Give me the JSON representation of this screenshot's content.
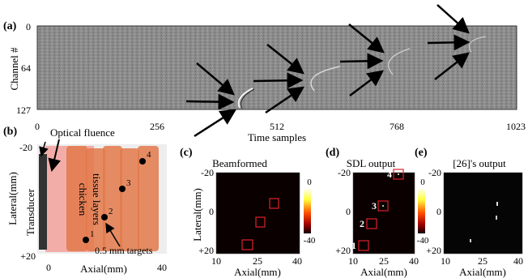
{
  "panels": {
    "a": {
      "label": "(a)",
      "ylabel": "Channel #",
      "xlabel": "Time samples",
      "yticks": [
        "0",
        "64",
        "127"
      ],
      "xticks": [
        "0",
        "256",
        "512",
        "768",
        "1023"
      ]
    },
    "b": {
      "label": "(b)",
      "optical_fluence": "Optical fluence",
      "transducer": "Transducer",
      "tissue_line1": "chicken",
      "tissue_line2": "tissue layers",
      "targets_label": "0.5 mm targets",
      "ylabel": "Lateral(mm)",
      "xlabel": "Axial(mm)",
      "ytick_top": "-20",
      "ytick_bottom": "+20",
      "xtick_left": "0",
      "xtick_right": "40",
      "target_numbers": [
        "1",
        "2",
        "3",
        "4"
      ]
    },
    "c": {
      "label": "(c)",
      "title": "Beamformed",
      "ylabel": "Lateral(mm)",
      "xlabel": "Axial(mm)",
      "yticks": [
        "-20",
        "0",
        "+20"
      ],
      "xticks": [
        "10",
        "25",
        "40"
      ],
      "colorbar_max": "0",
      "colorbar_min": "-40"
    },
    "d": {
      "label": "(d)",
      "title": "SDL output",
      "xlabel": "Axial(mm)",
      "yticks": [
        "-20",
        "0",
        "+20"
      ],
      "xticks": [
        "10",
        "25",
        "40"
      ],
      "colorbar_max": "0",
      "colorbar_min": "-40",
      "box_numbers": [
        "4",
        "3",
        "2",
        "1"
      ]
    },
    "e": {
      "label": "(e)",
      "title": "[26]'s output",
      "xlabel": "Axial(mm)",
      "yticks": [
        "-20",
        "0",
        "+20"
      ],
      "xticks": [
        "10",
        "25",
        "40"
      ]
    }
  },
  "colors": {
    "sinogram_bg": "#8a8a8a",
    "heatmap_bg": "#0a0000",
    "box": "#e0202a",
    "tissue": "#e3794a",
    "fluence": "#f2a5a0"
  }
}
